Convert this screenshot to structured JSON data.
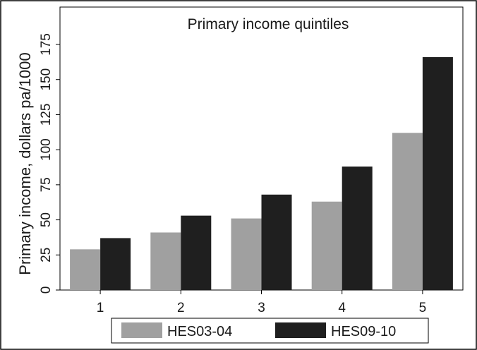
{
  "chart_data": {
    "type": "bar",
    "title": "Primary income quintiles",
    "xlabel": "",
    "ylabel": "Primary income, dollars pa/1000",
    "categories": [
      "1",
      "2",
      "3",
      "4",
      "5"
    ],
    "yticks": [
      "0",
      "25",
      "50",
      "75",
      "100",
      "125",
      "150",
      "175"
    ],
    "ylim": [
      0,
      175
    ],
    "grid": false,
    "legend_position": "bottom",
    "series": [
      {
        "name": "HES03-04",
        "color": "#a0a0a0",
        "values": [
          29,
          41,
          51,
          63,
          112
        ]
      },
      {
        "name": "HES09-10",
        "color": "#1f1f1f",
        "values": [
          37,
          53,
          68,
          88,
          166
        ]
      }
    ]
  }
}
